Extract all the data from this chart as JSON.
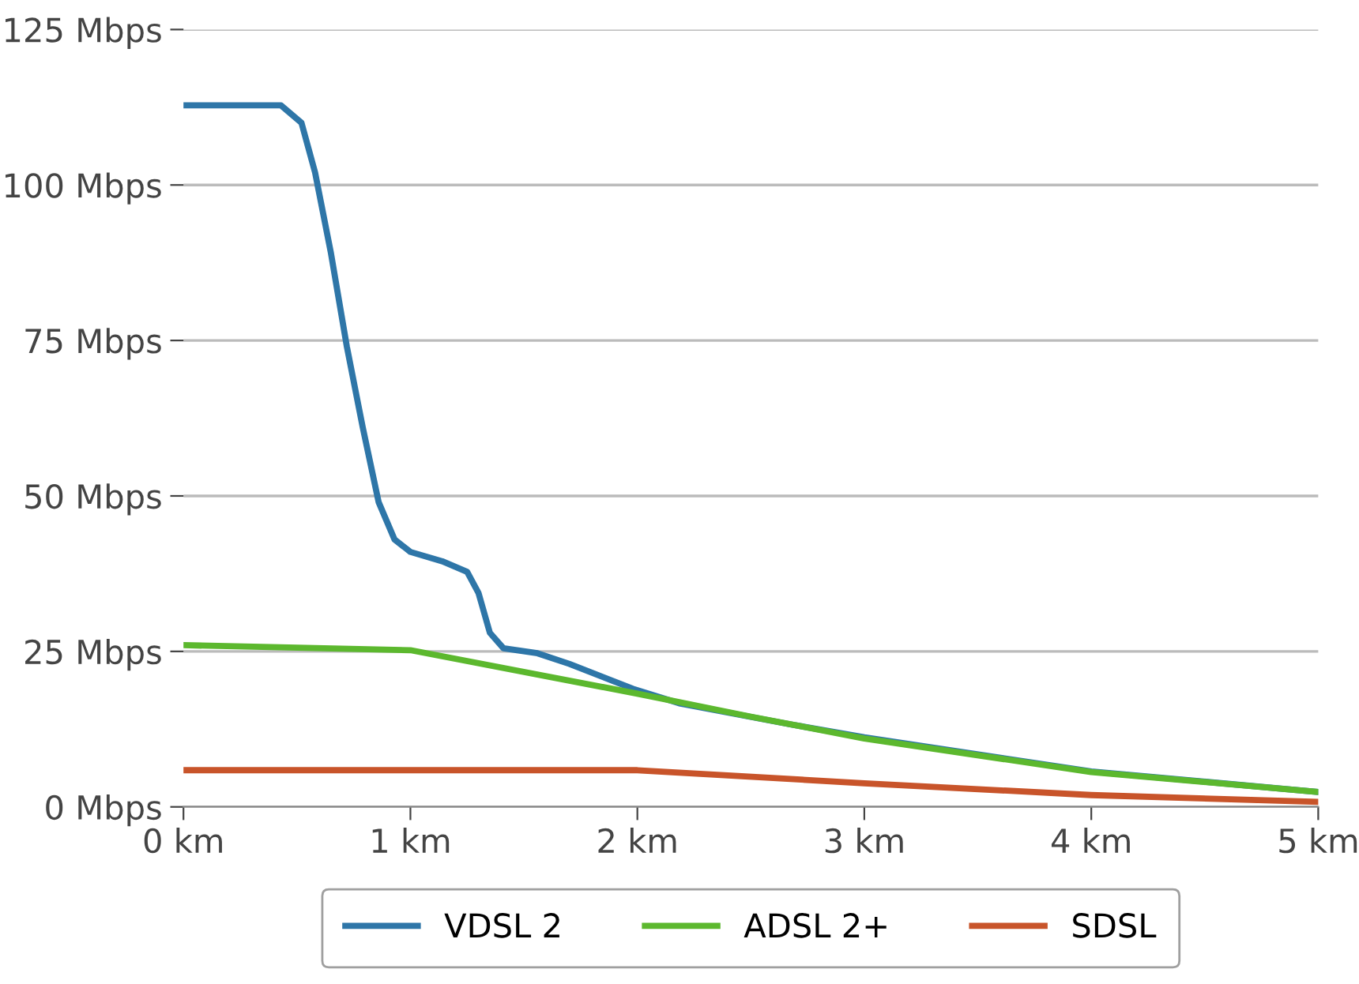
{
  "chart_data": {
    "type": "line",
    "xlim": [
      0,
      5
    ],
    "ylim": [
      0,
      125
    ],
    "xticks": [
      {
        "value": 0,
        "label": "0 km"
      },
      {
        "value": 1,
        "label": "1 km"
      },
      {
        "value": 2,
        "label": "2 km"
      },
      {
        "value": 3,
        "label": "3 km"
      },
      {
        "value": 4,
        "label": "4 km"
      },
      {
        "value": 5,
        "label": "5 km"
      }
    ],
    "yticks": [
      {
        "value": 0,
        "label": "0 Mbps"
      },
      {
        "value": 25,
        "label": "25 Mbps"
      },
      {
        "value": 50,
        "label": "50 Mbps"
      },
      {
        "value": 75,
        "label": "75 Mbps"
      },
      {
        "value": 100,
        "label": "100 Mbps"
      },
      {
        "value": 125,
        "label": "125 Mbps"
      }
    ],
    "grid": "y",
    "legend": "bottom",
    "marker": "none",
    "line_style": "solid",
    "series": [
      {
        "name": "VDSL 2",
        "color": "#2e76a8",
        "x": [
          0,
          0.43,
          0.52,
          0.58,
          0.65,
          0.72,
          0.79,
          0.86,
          0.93,
          1.0,
          1.14,
          1.25,
          1.3,
          1.35,
          1.41,
          1.56,
          1.7,
          1.98,
          2.19,
          2.67,
          3,
          4,
          5
        ],
        "values": [
          112.8,
          112.8,
          110,
          102,
          89,
          74,
          61,
          49,
          43,
          41,
          39.5,
          37.8,
          34.4,
          28,
          25.5,
          24.7,
          23,
          19,
          16.6,
          13.3,
          11.2,
          5.7,
          2.4
        ]
      },
      {
        "name": "ADSL 2+",
        "color": "#5cb82e",
        "x": [
          0,
          1,
          2,
          2.5,
          3,
          4,
          5
        ],
        "values": [
          26,
          25.2,
          18.2,
          14.5,
          11,
          5.6,
          2.4
        ]
      },
      {
        "name": "SDSL",
        "color": "#c8542a",
        "x": [
          0,
          2,
          3,
          4,
          5
        ],
        "values": [
          5.9,
          5.9,
          3.8,
          1.9,
          0.8
        ]
      }
    ]
  }
}
